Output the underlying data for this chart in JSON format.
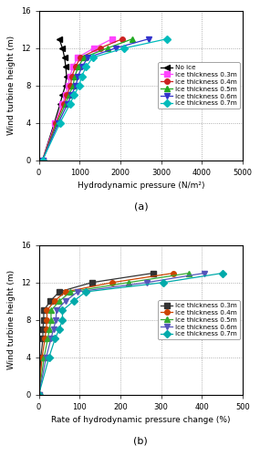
{
  "subplot_a": {
    "title": "(a)",
    "xlabel": "Hydrodynamic pressure (N/m²)",
    "ylabel": "Wind turbine height (m)",
    "xlim": [
      0,
      5000
    ],
    "ylim": [
      0,
      16
    ],
    "xticks": [
      0,
      1000,
      2000,
      3000,
      4000,
      5000
    ],
    "yticks": [
      0,
      4,
      8,
      12,
      16
    ],
    "series": [
      {
        "label": "No ice",
        "color": "#000000",
        "marker": "<",
        "markersize": 4,
        "heights": [
          0,
          4,
          6,
          7,
          8,
          9,
          10,
          11,
          12,
          13
        ],
        "values": [
          90,
          380,
          520,
          580,
          650,
          680,
          660,
          630,
          580,
          500
        ]
      },
      {
        "label": "Ice thickness 0.3m",
        "color": "#ff44ff",
        "marker": "s",
        "markersize": 4,
        "heights": [
          0,
          4,
          6,
          7,
          8,
          9,
          10,
          11,
          12,
          13
        ],
        "values": [
          90,
          400,
          580,
          650,
          730,
          760,
          840,
          950,
          1350,
          1800
        ]
      },
      {
        "label": "Ice thickness 0.4m",
        "color": "#cc2222",
        "marker": "o",
        "markersize": 4,
        "heights": [
          0,
          4,
          6,
          7,
          8,
          9,
          10,
          11,
          12,
          13
        ],
        "values": [
          90,
          420,
          610,
          690,
          780,
          810,
          900,
          1020,
          1500,
          2050
        ]
      },
      {
        "label": "Ice thickness 0.5m",
        "color": "#22aa22",
        "marker": "^",
        "markersize": 4,
        "heights": [
          0,
          4,
          6,
          7,
          8,
          9,
          10,
          11,
          12,
          13
        ],
        "values": [
          90,
          450,
          650,
          740,
          840,
          880,
          970,
          1100,
          1680,
          2300
        ]
      },
      {
        "label": "Ice thickness 0.6m",
        "color": "#3333cc",
        "marker": "v",
        "markersize": 4,
        "heights": [
          0,
          4,
          6,
          7,
          8,
          9,
          10,
          11,
          12,
          13
        ],
        "values": [
          90,
          480,
          700,
          800,
          910,
          960,
          1060,
          1200,
          1880,
          2700
        ]
      },
      {
        "label": "Ice thickness 0.7m",
        "color": "#00bbbb",
        "marker": "D",
        "markersize": 4,
        "heights": [
          0,
          4,
          6,
          7,
          8,
          9,
          10,
          11,
          12,
          13
        ],
        "values": [
          90,
          520,
          760,
          870,
          990,
          1050,
          1160,
          1320,
          2100,
          3150
        ]
      }
    ]
  },
  "subplot_b": {
    "title": "(b)",
    "xlabel": "Rate of hydrodynamic pressure change (%)",
    "ylabel": "Wind turbine height (m)",
    "xlim": [
      0,
      500
    ],
    "ylim": [
      0,
      16
    ],
    "xticks": [
      0,
      100,
      200,
      300,
      400,
      500
    ],
    "yticks": [
      0,
      4,
      8,
      12,
      16
    ],
    "series": [
      {
        "label": "Ice thickness 0.3m",
        "color": "#333333",
        "marker": "s",
        "markersize": 4,
        "heights": [
          0,
          4,
          6,
          7,
          8,
          9,
          10,
          11,
          12,
          13
        ],
        "values": [
          0,
          5,
          10,
          10,
          12,
          12,
          28,
          50,
          130,
          280
        ]
      },
      {
        "label": "Ice thickness 0.4m",
        "color": "#cc4400",
        "marker": "o",
        "markersize": 4,
        "heights": [
          0,
          4,
          6,
          7,
          8,
          9,
          10,
          11,
          12,
          13
        ],
        "values": [
          0,
          8,
          15,
          18,
          20,
          20,
          38,
          65,
          180,
          330
        ]
      },
      {
        "label": "Ice thickness 0.5m",
        "color": "#33aa33",
        "marker": "^",
        "markersize": 4,
        "heights": [
          0,
          4,
          6,
          7,
          8,
          9,
          10,
          11,
          12,
          13
        ],
        "values": [
          0,
          13,
          22,
          26,
          30,
          30,
          50,
          78,
          220,
          368
        ]
      },
      {
        "label": "Ice thickness 0.6m",
        "color": "#5555bb",
        "marker": "v",
        "markersize": 4,
        "heights": [
          0,
          4,
          6,
          7,
          8,
          9,
          10,
          11,
          12,
          13
        ],
        "values": [
          0,
          18,
          30,
          36,
          42,
          43,
          65,
          95,
          265,
          405
        ]
      },
      {
        "label": "Ice thickness 0.7m",
        "color": "#00aaaa",
        "marker": "D",
        "markersize": 4,
        "heights": [
          0,
          4,
          6,
          7,
          8,
          9,
          10,
          11,
          12,
          13
        ],
        "values": [
          0,
          25,
          40,
          50,
          58,
          58,
          85,
          115,
          305,
          450
        ]
      }
    ]
  }
}
